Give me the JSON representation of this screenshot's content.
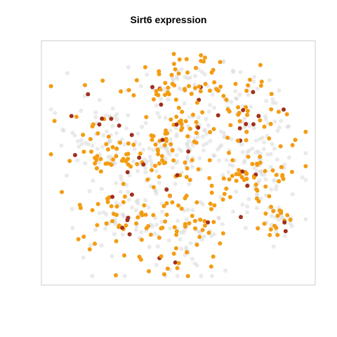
{
  "chart_data": {
    "type": "scatter",
    "title": "Sirt6 expression",
    "xlabel": "",
    "ylabel": "",
    "xlim": [
      0,
      100
    ],
    "ylim": [
      0,
      100
    ],
    "axes_visible": false,
    "grid": false,
    "legend": "none",
    "colors": {
      "background_points": "#d9d9d9",
      "expressed": "#f39c12",
      "high": "#a0301e",
      "frame": "#cccccc"
    },
    "clusters": [
      {
        "cx": 52,
        "cy": 84,
        "sx": 10,
        "sy": 6,
        "n": 90
      },
      {
        "cx": 22,
        "cy": 60,
        "sx": 9,
        "sy": 11,
        "n": 120
      },
      {
        "cx": 40,
        "cy": 50,
        "sx": 10,
        "sy": 8,
        "n": 110
      },
      {
        "cx": 75,
        "cy": 70,
        "sx": 10,
        "sy": 9,
        "n": 110
      },
      {
        "cx": 78,
        "cy": 45,
        "sx": 9,
        "sy": 8,
        "n": 110
      },
      {
        "cx": 30,
        "cy": 25,
        "sx": 11,
        "sy": 8,
        "n": 110
      },
      {
        "cx": 55,
        "cy": 22,
        "sx": 9,
        "sy": 10,
        "n": 100
      },
      {
        "cx": 52,
        "cy": 63,
        "sx": 6,
        "sy": 7,
        "n": 70
      },
      {
        "cx": 88,
        "cy": 25,
        "sx": 4,
        "sy": 4,
        "n": 40
      }
    ],
    "expressed_fraction": 0.38,
    "high_fraction": 0.05
  }
}
